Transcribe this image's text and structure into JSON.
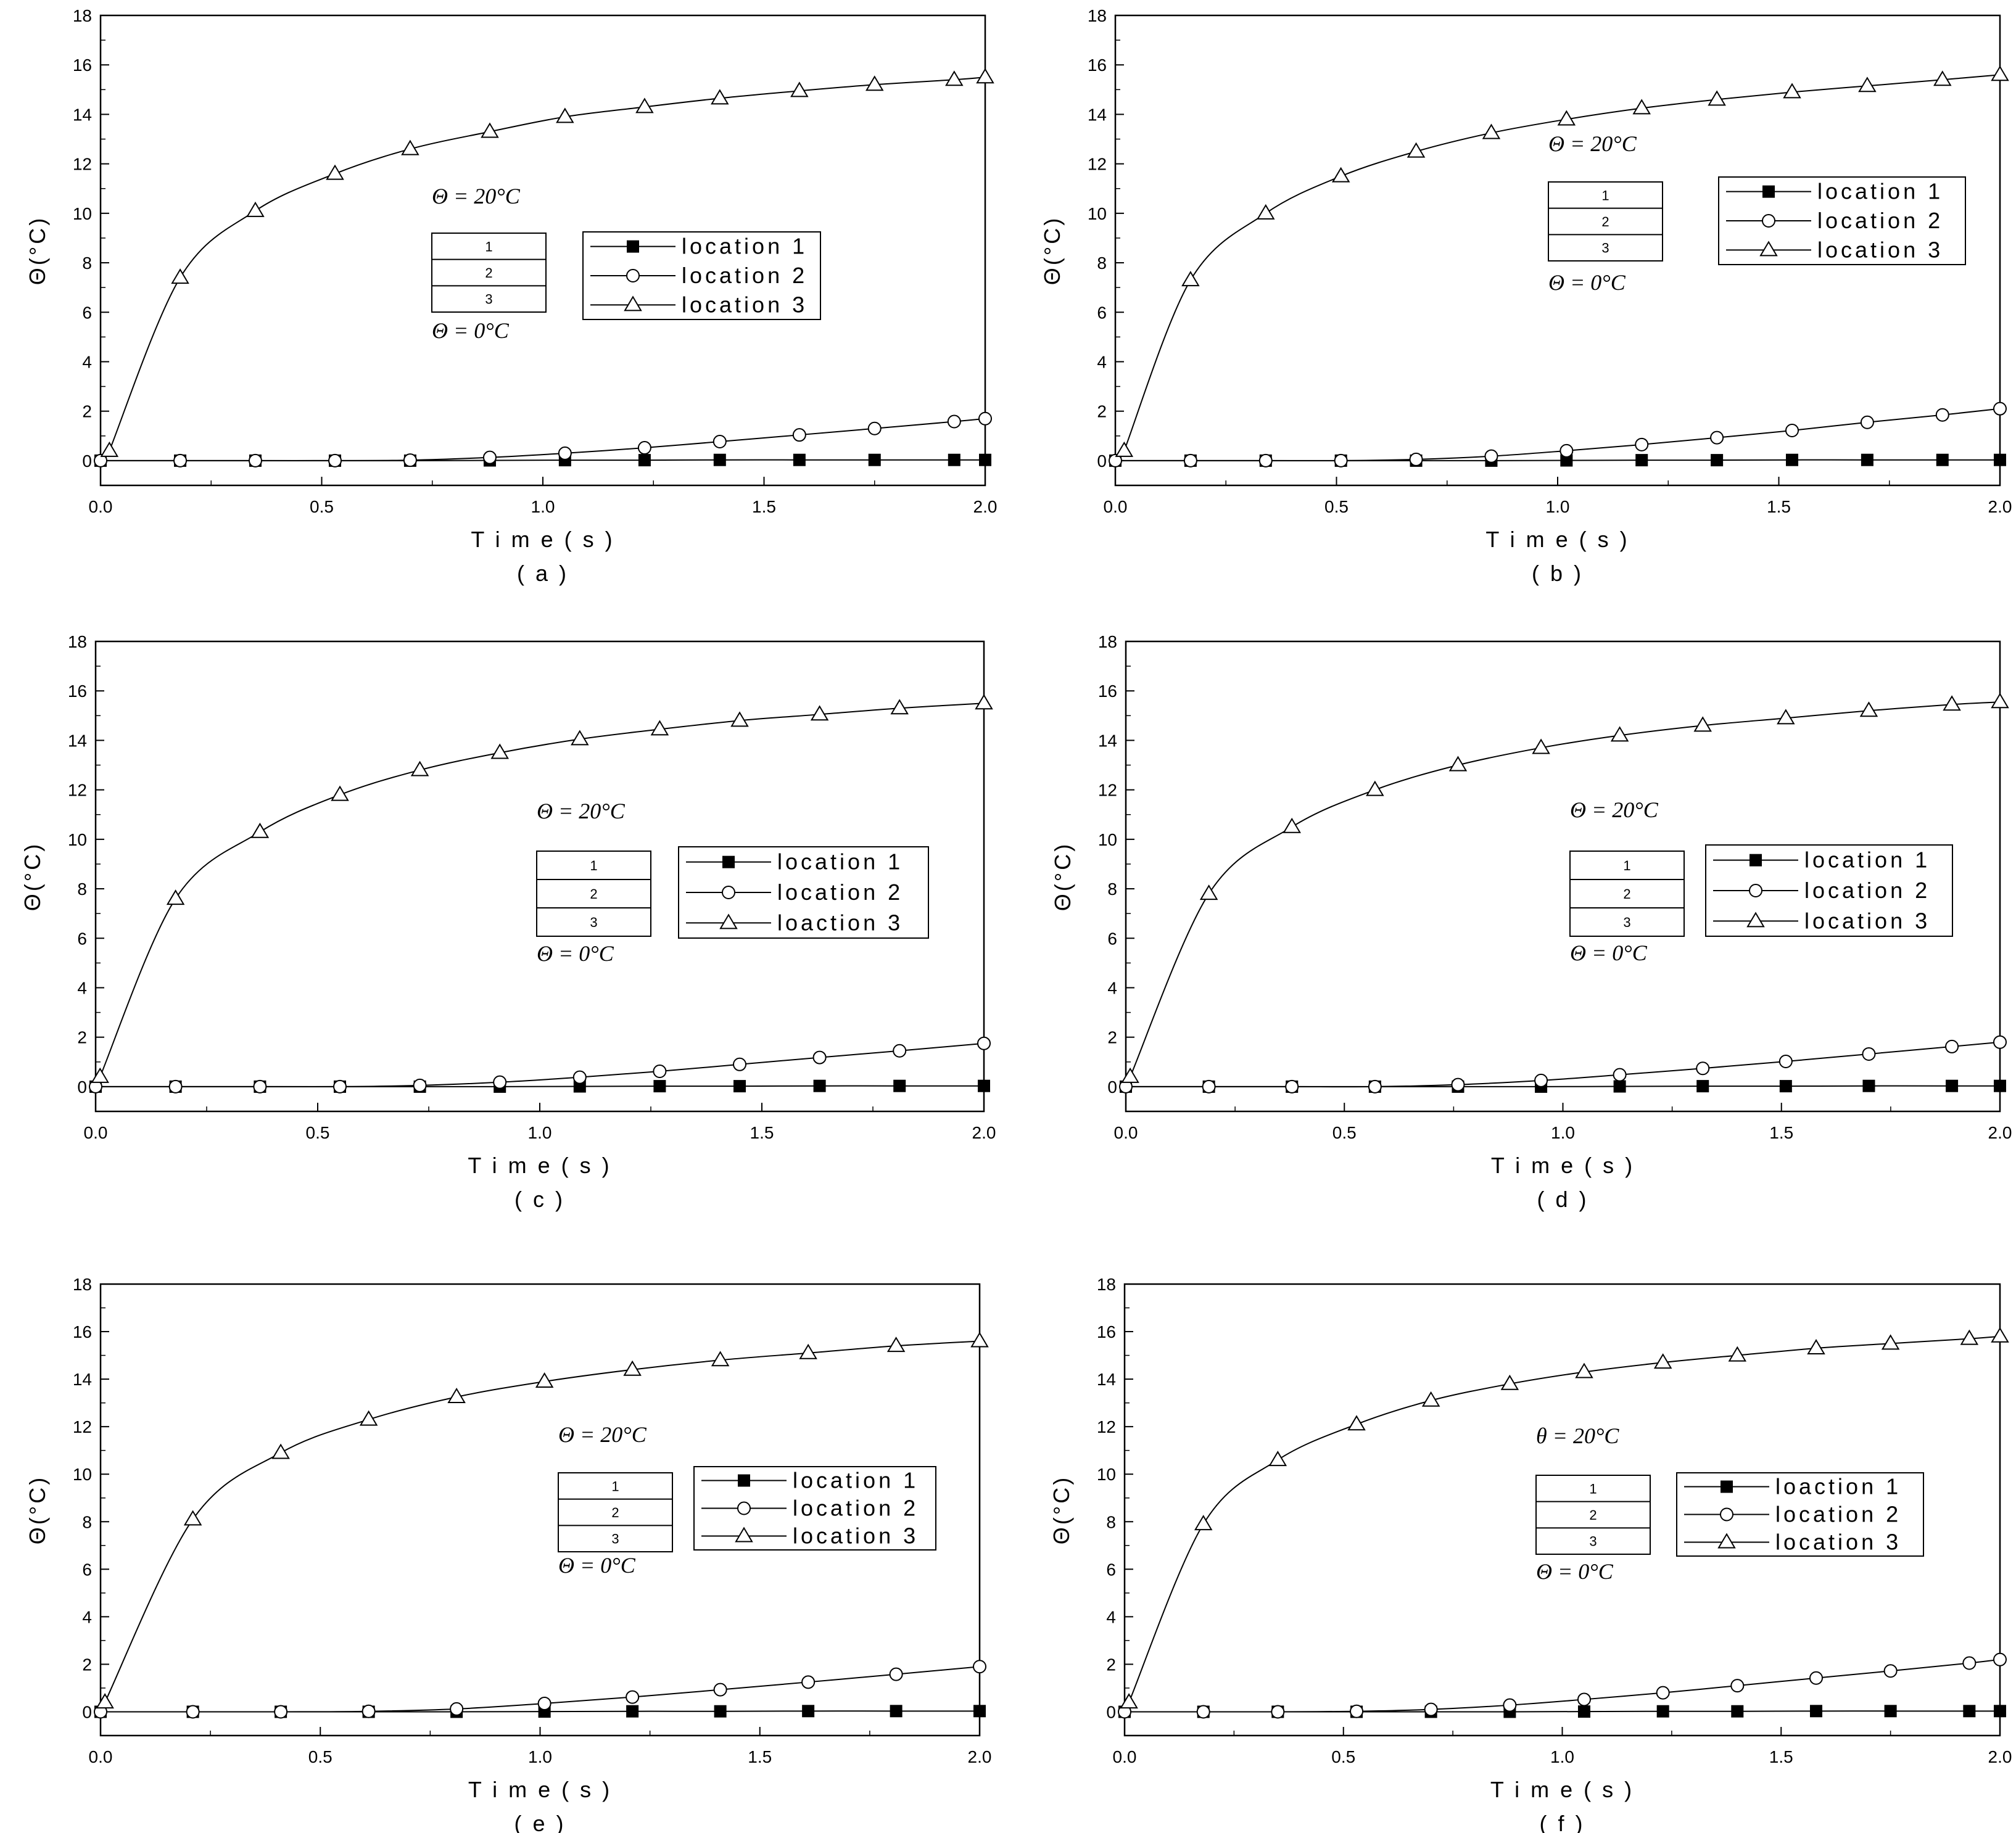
{
  "figure": {
    "panels_count": 6
  },
  "chart_data": [
    {
      "type": "line",
      "panel_label": "( a )",
      "xlabel": "T i m e  ( s )",
      "ylabel": "Θ(°C)",
      "xlim": [
        0,
        2.0
      ],
      "ylim": [
        -1,
        18
      ],
      "x_ticks": [
        "0.0",
        "0.5",
        "1.0",
        "1.5",
        "2.0"
      ],
      "y_ticks": [
        "0",
        "2",
        "4",
        "6",
        "8",
        "10",
        "12",
        "14",
        "16",
        "18"
      ],
      "legend": {
        "placement": "center-right",
        "entries": [
          "location  1",
          "location  2",
          "location  3"
        ]
      },
      "boundary_top": "Θ  =  20°C",
      "boundary_bottom": "Θ  =  0°C",
      "layers": [
        "1",
        "2",
        "3"
      ],
      "series": [
        {
          "name": "location  1",
          "marker": "square",
          "x": [
            0,
            0.18,
            0.35,
            0.53,
            0.7,
            0.88,
            1.05,
            1.23,
            1.4,
            1.58,
            1.75,
            1.93,
            2.0
          ],
          "y": [
            0,
            0,
            0,
            0,
            0,
            0.01,
            0.02,
            0.02,
            0.03,
            0.03,
            0.03,
            0.03,
            0.03
          ]
        },
        {
          "name": "location  2",
          "marker": "circle",
          "x": [
            0,
            0.18,
            0.35,
            0.53,
            0.7,
            0.88,
            1.05,
            1.23,
            1.4,
            1.58,
            1.75,
            1.93,
            2.0
          ],
          "y": [
            0,
            0,
            0,
            0,
            0.02,
            0.13,
            0.3,
            0.52,
            0.77,
            1.04,
            1.3,
            1.58,
            1.7
          ]
        },
        {
          "name": "location  3",
          "marker": "triangle",
          "x": [
            0.02,
            0.18,
            0.35,
            0.53,
            0.7,
            0.88,
            1.05,
            1.23,
            1.4,
            1.58,
            1.75,
            1.93,
            2.0
          ],
          "y": [
            0.4,
            7.4,
            10.1,
            11.6,
            12.6,
            13.3,
            13.9,
            14.3,
            14.65,
            14.95,
            15.2,
            15.4,
            15.5
          ]
        }
      ]
    },
    {
      "type": "line",
      "panel_label": "( b )",
      "xlabel": "T i m e  ( s )",
      "ylabel": "Θ(°C)",
      "xlim": [
        0,
        2.0
      ],
      "ylim": [
        -1,
        18
      ],
      "x_ticks": [
        "0.0",
        "0.5",
        "1.0",
        "1.5",
        "2.0"
      ],
      "y_ticks": [
        "0",
        "2",
        "4",
        "6",
        "8",
        "10",
        "12",
        "14",
        "16",
        "18"
      ],
      "legend": {
        "placement": "upper-right",
        "entries": [
          "location  1",
          "location  2",
          "location  3"
        ]
      },
      "boundary_top": "Θ  =  20°C",
      "boundary_bottom": "Θ  =  0°C",
      "layers": [
        "1",
        "2",
        "3"
      ],
      "series": [
        {
          "name": "location  1",
          "marker": "square",
          "x": [
            0,
            0.17,
            0.34,
            0.51,
            0.68,
            0.85,
            1.02,
            1.19,
            1.36,
            1.53,
            1.7,
            1.87,
            2.0
          ],
          "y": [
            0,
            0,
            0,
            0,
            0,
            0,
            0.01,
            0.02,
            0.02,
            0.03,
            0.03,
            0.03,
            0.03
          ]
        },
        {
          "name": "location  2",
          "marker": "circle",
          "x": [
            0,
            0.17,
            0.34,
            0.51,
            0.68,
            0.85,
            1.02,
            1.19,
            1.36,
            1.53,
            1.7,
            1.87,
            2.0
          ],
          "y": [
            0,
            0,
            0,
            0,
            0.05,
            0.18,
            0.4,
            0.65,
            0.93,
            1.22,
            1.55,
            1.85,
            2.1
          ]
        },
        {
          "name": "location  3",
          "marker": "triangle",
          "x": [
            0.02,
            0.17,
            0.34,
            0.51,
            0.68,
            0.85,
            1.02,
            1.19,
            1.36,
            1.53,
            1.7,
            1.87,
            2.0
          ],
          "y": [
            0.4,
            7.3,
            10.0,
            11.5,
            12.5,
            13.25,
            13.8,
            14.25,
            14.6,
            14.9,
            15.15,
            15.4,
            15.6
          ]
        }
      ]
    },
    {
      "type": "line",
      "panel_label": "( c )",
      "xlabel": "T i m e  ( s )",
      "ylabel": "Θ(°C)",
      "xlim": [
        0,
        2.0
      ],
      "ylim": [
        -1,
        18
      ],
      "x_ticks": [
        "0.0",
        "0.5",
        "1.0",
        "1.5",
        "2.0"
      ],
      "y_ticks": [
        "0",
        "2",
        "4",
        "6",
        "8",
        "10",
        "12",
        "14",
        "16",
        "18"
      ],
      "legend": {
        "placement": "center-right",
        "entries": [
          "location  1",
          "location  2",
          "loaction  3"
        ]
      },
      "boundary_top": "Θ  =  20°C",
      "boundary_bottom": "Θ  =  0°C",
      "layers": [
        "1",
        "2",
        "3"
      ],
      "series": [
        {
          "name": "location  1",
          "marker": "square",
          "x": [
            0,
            0.18,
            0.37,
            0.55,
            0.73,
            0.91,
            1.09,
            1.27,
            1.45,
            1.63,
            1.81,
            2.0
          ],
          "y": [
            0,
            0,
            0,
            0,
            0,
            0,
            0.01,
            0.02,
            0.02,
            0.03,
            0.03,
            0.03
          ]
        },
        {
          "name": "location  2",
          "marker": "circle",
          "x": [
            0,
            0.18,
            0.37,
            0.55,
            0.73,
            0.91,
            1.09,
            1.27,
            1.45,
            1.63,
            1.81,
            2.0
          ],
          "y": [
            0,
            0,
            0,
            0,
            0.05,
            0.18,
            0.38,
            0.62,
            0.9,
            1.18,
            1.45,
            1.75
          ]
        },
        {
          "name": "loaction  3",
          "marker": "triangle",
          "x": [
            0.01,
            0.18,
            0.37,
            0.55,
            0.73,
            0.91,
            1.09,
            1.27,
            1.45,
            1.63,
            1.81,
            2.0
          ],
          "y": [
            0.4,
            7.6,
            10.3,
            11.8,
            12.8,
            13.5,
            14.05,
            14.45,
            14.8,
            15.05,
            15.3,
            15.5
          ]
        }
      ]
    },
    {
      "type": "line",
      "panel_label": "( d )",
      "xlabel": "T i m e  ( s )",
      "ylabel": "Θ(°C)",
      "xlim": [
        0,
        2.0
      ],
      "ylim": [
        -1,
        18
      ],
      "x_ticks": [
        "0.0",
        "0.5",
        "1.0",
        "1.5",
        "2.0"
      ],
      "y_ticks": [
        "0",
        "2",
        "4",
        "6",
        "8",
        "10",
        "12",
        "14",
        "16",
        "18"
      ],
      "legend": {
        "placement": "center-right",
        "entries": [
          "location  1",
          "location  2",
          "location  3"
        ]
      },
      "boundary_top": "Θ  =  20°C",
      "boundary_bottom": "Θ  =  0°C",
      "layers": [
        "1",
        "2",
        "3"
      ],
      "series": [
        {
          "name": "location  1",
          "marker": "square",
          "x": [
            0,
            0.19,
            0.38,
            0.57,
            0.76,
            0.95,
            1.13,
            1.32,
            1.51,
            1.7,
            1.89,
            2.0
          ],
          "y": [
            0,
            0,
            0,
            0,
            0,
            0,
            0.01,
            0.02,
            0.02,
            0.03,
            0.03,
            0.03
          ]
        },
        {
          "name": "location  2",
          "marker": "circle",
          "x": [
            0,
            0.19,
            0.38,
            0.57,
            0.76,
            0.95,
            1.13,
            1.32,
            1.51,
            1.7,
            1.89,
            2.0
          ],
          "y": [
            0,
            0,
            0,
            0,
            0.08,
            0.25,
            0.48,
            0.74,
            1.02,
            1.32,
            1.62,
            1.8
          ]
        },
        {
          "name": "location  3",
          "marker": "triangle",
          "x": [
            0.01,
            0.19,
            0.38,
            0.57,
            0.76,
            0.95,
            1.13,
            1.32,
            1.51,
            1.7,
            1.89,
            2.0
          ],
          "y": [
            0.4,
            7.8,
            10.5,
            12.0,
            13.0,
            13.7,
            14.2,
            14.6,
            14.9,
            15.2,
            15.45,
            15.55
          ]
        }
      ]
    },
    {
      "type": "line",
      "panel_label": "( e )",
      "xlabel": "T i m e  ( s )",
      "ylabel": "Θ(°C)",
      "xlim": [
        0,
        2.0
      ],
      "ylim": [
        -1,
        18
      ],
      "x_ticks": [
        "0.0",
        "0.5",
        "1.0",
        "1.5",
        "2.0"
      ],
      "y_ticks": [
        "0",
        "2",
        "4",
        "6",
        "8",
        "10",
        "12",
        "14",
        "16",
        "18"
      ],
      "legend": {
        "placement": "center-right",
        "entries": [
          "location  1",
          "location  2",
          "location  3"
        ]
      },
      "boundary_top": "Θ  =  20°C",
      "boundary_bottom": "Θ =  0°C",
      "layers": [
        "1",
        "2",
        "3"
      ],
      "series": [
        {
          "name": "location  1",
          "marker": "square",
          "x": [
            0,
            0.21,
            0.41,
            0.61,
            0.81,
            1.01,
            1.21,
            1.41,
            1.61,
            1.81,
            2.0
          ],
          "y": [
            0,
            0,
            0,
            0,
            0,
            0.01,
            0.02,
            0.02,
            0.03,
            0.03,
            0.03
          ]
        },
        {
          "name": "location  2",
          "marker": "circle",
          "x": [
            0,
            0.21,
            0.41,
            0.61,
            0.81,
            1.01,
            1.21,
            1.41,
            1.61,
            1.81,
            2.0
          ],
          "y": [
            0,
            0,
            0,
            0.02,
            0.12,
            0.35,
            0.62,
            0.93,
            1.25,
            1.58,
            1.9
          ]
        },
        {
          "name": "location  3",
          "marker": "triangle",
          "x": [
            0.01,
            0.21,
            0.41,
            0.61,
            0.81,
            1.01,
            1.21,
            1.41,
            1.61,
            1.81,
            2.0
          ],
          "y": [
            0.4,
            8.1,
            10.9,
            12.3,
            13.25,
            13.9,
            14.4,
            14.8,
            15.1,
            15.4,
            15.6
          ]
        }
      ]
    },
    {
      "type": "line",
      "panel_label": "( f )",
      "xlabel": "T i m e  ( s )",
      "ylabel": "Θ(°C)",
      "xlim": [
        0,
        2.0
      ],
      "ylim": [
        -1,
        18
      ],
      "x_ticks": [
        "0.0",
        "0.5",
        "1.0",
        "1.5",
        "2.0"
      ],
      "y_ticks": [
        "0",
        "2",
        "4",
        "6",
        "8",
        "10",
        "12",
        "14",
        "16",
        "18"
      ],
      "legend": {
        "placement": "center-right",
        "entries": [
          "loaction  1",
          "location  2",
          "location  3"
        ]
      },
      "boundary_top": "θ  =  20°C",
      "boundary_bottom": "Θ  =  0°C",
      "layers": [
        "1",
        "2",
        "3"
      ],
      "series": [
        {
          "name": "loaction  1",
          "marker": "square",
          "x": [
            0,
            0.18,
            0.35,
            0.53,
            0.7,
            0.88,
            1.05,
            1.23,
            1.4,
            1.58,
            1.75,
            1.93,
            2.0
          ],
          "y": [
            0,
            0,
            0,
            0,
            0,
            0,
            0.01,
            0.02,
            0.02,
            0.03,
            0.03,
            0.03,
            0.03
          ]
        },
        {
          "name": "location  2",
          "marker": "circle",
          "x": [
            0,
            0.18,
            0.35,
            0.53,
            0.7,
            0.88,
            1.05,
            1.23,
            1.4,
            1.58,
            1.75,
            1.93,
            2.0
          ],
          "y": [
            0,
            0,
            0,
            0.02,
            0.1,
            0.28,
            0.52,
            0.8,
            1.1,
            1.42,
            1.72,
            2.05,
            2.2
          ]
        },
        {
          "name": "location  3",
          "marker": "triangle",
          "x": [
            0.01,
            0.18,
            0.35,
            0.53,
            0.7,
            0.88,
            1.05,
            1.23,
            1.4,
            1.58,
            1.75,
            1.93,
            2.0
          ],
          "y": [
            0.4,
            7.9,
            10.6,
            12.1,
            13.1,
            13.8,
            14.3,
            14.7,
            15.0,
            15.3,
            15.5,
            15.7,
            15.8
          ]
        }
      ]
    }
  ]
}
